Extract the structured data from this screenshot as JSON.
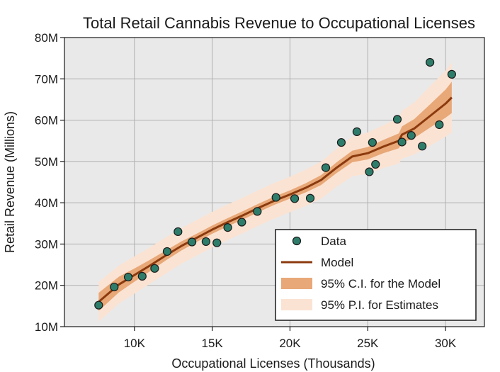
{
  "chart_data": {
    "type": "scatter",
    "title": "Total Retail Cannabis Revenue to Occupational Licenses",
    "xlabel": "Occupational Licenses (Thousands)",
    "ylabel": "Retail Revenue (Millions)",
    "xlim": [
      5500,
      32500
    ],
    "ylim": [
      10,
      80
    ],
    "xticks": [
      10000,
      15000,
      20000,
      25000,
      30000
    ],
    "xtick_labels": [
      "10K",
      "15K",
      "20K",
      "25K",
      "30K"
    ],
    "yticks": [
      10,
      20,
      30,
      40,
      50,
      60,
      70,
      80
    ],
    "ytick_labels": [
      "10M",
      "20M",
      "30M",
      "40M",
      "50M",
      "60M",
      "70M",
      "80M"
    ],
    "grid": true,
    "legend_position": "bottom-right",
    "legend": [
      {
        "label": "Data",
        "kind": "marker"
      },
      {
        "label": "Model",
        "kind": "line"
      },
      {
        "label": "95% C.I. for the Model",
        "kind": "band-ci"
      },
      {
        "label": "95% P.I. for Estimates",
        "kind": "band-pi"
      }
    ],
    "colors": {
      "data_fill": "#2e7d6b",
      "data_edge": "#1a1a1a",
      "model_line": "#8b3a0e",
      "ci_band": "#e8a878",
      "pi_band": "#fbe3d3",
      "grid": "#b0b0b0",
      "plot_background": "#e9e9e9"
    },
    "series": [
      {
        "name": "Data",
        "points": [
          [
            7700,
            15.2
          ],
          [
            8700,
            19.6
          ],
          [
            9600,
            22.0
          ],
          [
            10500,
            22.2
          ],
          [
            11300,
            24.1
          ],
          [
            12100,
            28.2
          ],
          [
            12800,
            33.0
          ],
          [
            13700,
            30.5
          ],
          [
            14600,
            30.6
          ],
          [
            15300,
            30.3
          ],
          [
            16000,
            34.0
          ],
          [
            16900,
            35.3
          ],
          [
            17900,
            37.9
          ],
          [
            19100,
            41.3
          ],
          [
            20300,
            41.0
          ],
          [
            21300,
            41.1
          ],
          [
            22300,
            48.5
          ],
          [
            23300,
            54.6
          ],
          [
            24300,
            57.2
          ],
          [
            25100,
            47.5
          ],
          [
            25300,
            54.6
          ],
          [
            25500,
            49.3
          ],
          [
            26900,
            60.2
          ],
          [
            27200,
            54.7
          ],
          [
            27800,
            56.3
          ],
          [
            28500,
            53.7
          ],
          [
            29000,
            74.0
          ],
          [
            29600,
            58.9
          ],
          [
            30400,
            71.1
          ]
        ]
      },
      {
        "name": "Model",
        "line": [
          [
            7700,
            16.0
          ],
          [
            9000,
            20.2
          ],
          [
            10000,
            22.5
          ],
          [
            11000,
            24.8
          ],
          [
            12000,
            27.2
          ],
          [
            13000,
            29.5
          ],
          [
            14000,
            31.5
          ],
          [
            15000,
            33.5
          ],
          [
            16000,
            35.3
          ],
          [
            17000,
            37.0
          ],
          [
            18000,
            38.8
          ],
          [
            19000,
            40.5
          ],
          [
            20000,
            42.0
          ],
          [
            21000,
            43.6
          ],
          [
            22000,
            45.5
          ],
          [
            23000,
            48.5
          ],
          [
            24000,
            51.2
          ],
          [
            25000,
            52.0
          ],
          [
            26000,
            53.6
          ],
          [
            27000,
            55.0
          ],
          [
            27200,
            56.5
          ],
          [
            28000,
            58.0
          ],
          [
            29000,
            61.0
          ],
          [
            30000,
            64.0
          ],
          [
            30400,
            65.5
          ]
        ],
        "ci_half_width": [
          2.2,
          1.9,
          1.6,
          1.4,
          1.2,
          1.1,
          1.0,
          1.0,
          1.0,
          1.0,
          1.0,
          1.0,
          1.0,
          1.1,
          1.2,
          1.3,
          1.4,
          1.5,
          1.6,
          1.8,
          2.0,
          2.3,
          2.8,
          3.4,
          3.8
        ],
        "pi_half_width": [
          4.8,
          4.6,
          4.5,
          4.4,
          4.4,
          4.3,
          4.3,
          4.3,
          4.3,
          4.3,
          4.3,
          4.3,
          4.3,
          4.4,
          4.5,
          4.6,
          4.8,
          5.0,
          5.2,
          5.5,
          5.8,
          6.3,
          7.2,
          8.0,
          8.5
        ]
      }
    ]
  }
}
